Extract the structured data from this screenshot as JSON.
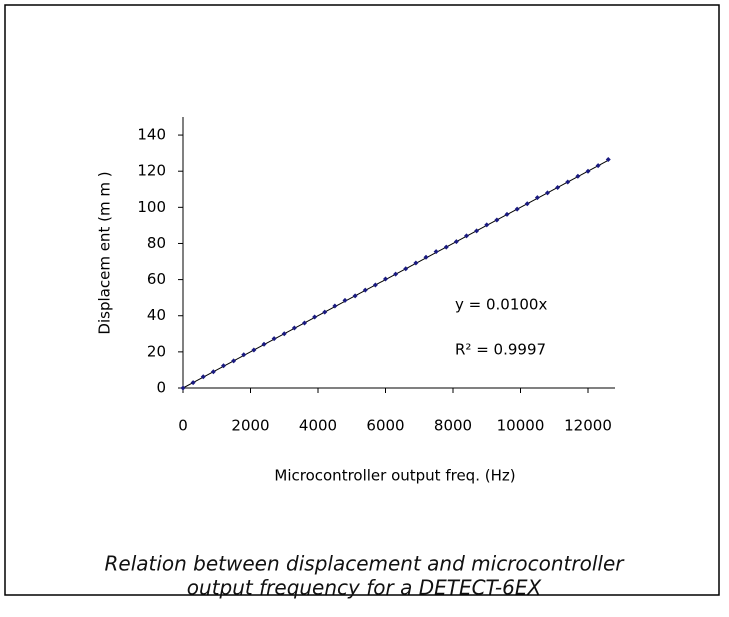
{
  "chart_data": {
    "type": "scatter",
    "x_label": "Microcontroller output freq. (Hz)",
    "y_label": "Displacem ent (m m )",
    "caption": [
      "Relation between displacement and microcontroller",
      "output frequency for a DETECT-6EX"
    ],
    "series": [
      {
        "name": "Displacement",
        "color": "#1a1a80",
        "x": [
          0,
          300,
          600,
          900,
          1200,
          1500,
          1800,
          2100,
          2400,
          2700,
          3000,
          3300,
          3600,
          3900,
          4200,
          4500,
          4800,
          5100,
          5400,
          5700,
          6000,
          6300,
          6600,
          6900,
          7200,
          7500,
          7800,
          8100,
          8400,
          8700,
          9000,
          9300,
          9600,
          9900,
          10200,
          10500,
          10800,
          11100,
          11400,
          11700,
          12000,
          12300,
          12600
        ],
        "values": [
          0,
          3,
          6.2,
          9,
          12.3,
          15,
          18.4,
          21,
          24.2,
          27.3,
          30,
          33.2,
          36,
          39.3,
          42,
          45.4,
          48.5,
          51,
          54.2,
          57,
          60.3,
          63,
          66,
          69.2,
          72.4,
          75.5,
          78,
          81,
          84.2,
          87,
          90.3,
          93,
          96.1,
          99,
          102,
          105.4,
          108,
          111,
          114,
          117.2,
          120,
          123.1,
          126.5
        ]
      }
    ],
    "trendline": {
      "slope": 0.01,
      "label": "y = 0.0100x",
      "r2_label": "R² = 0.9997"
    },
    "xlim": [
      0,
      12800
    ],
    "xticks": [
      0,
      2000,
      4000,
      6000,
      8000,
      10000,
      12000
    ],
    "ylim": [
      0,
      150
    ],
    "yticks": [
      0,
      20,
      40,
      60,
      80,
      100,
      120,
      140
    ]
  }
}
